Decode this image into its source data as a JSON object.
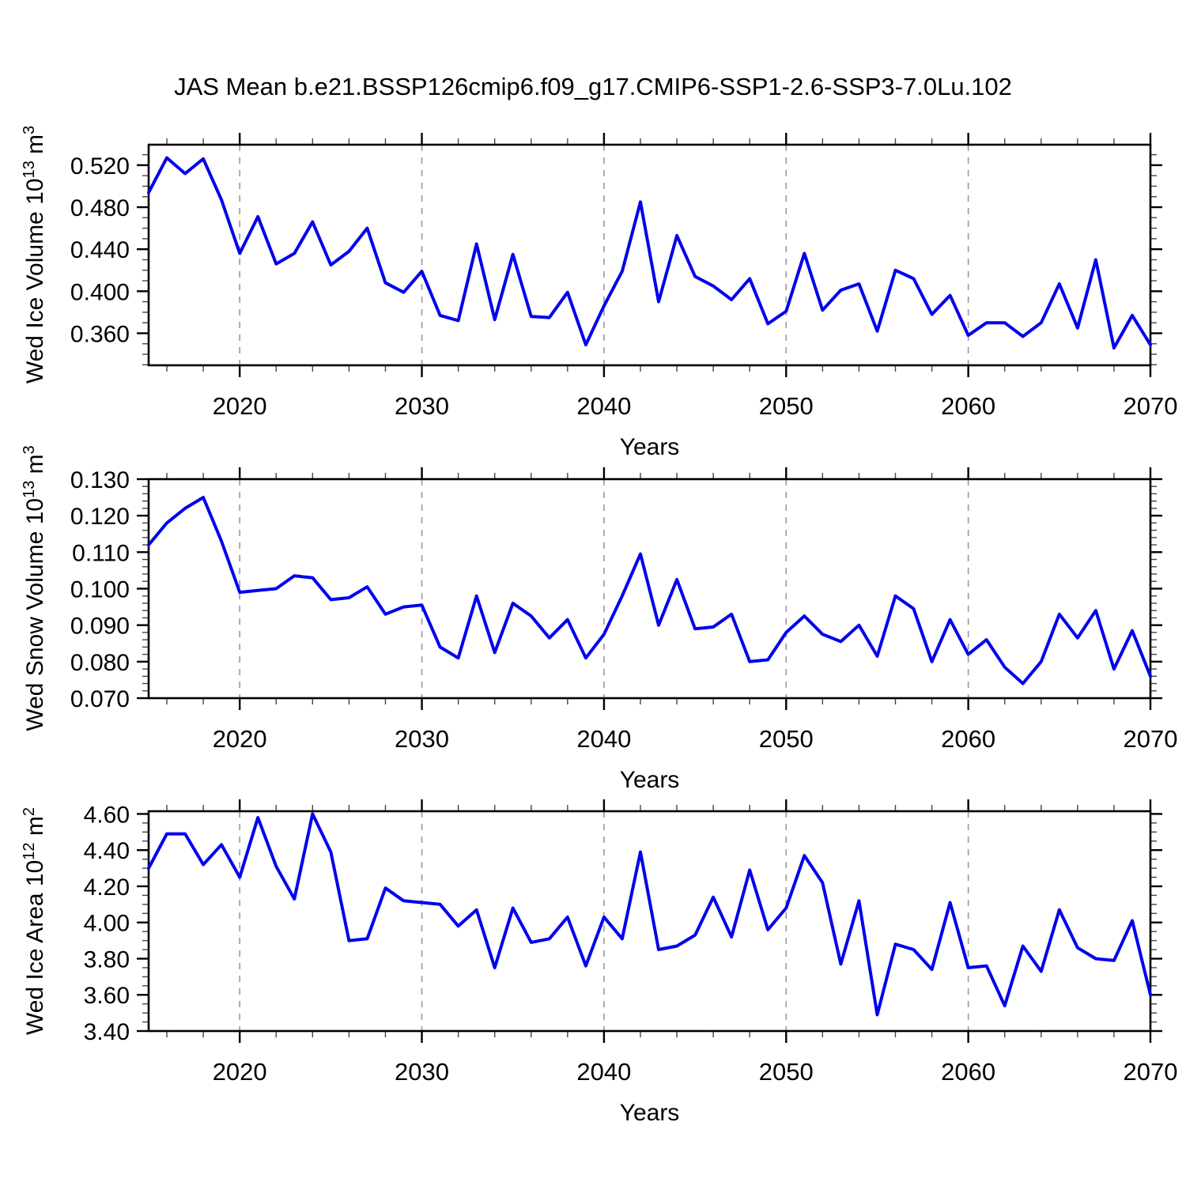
{
  "title": "JAS Mean b.e21.BSSP126cmip6.f09_g17.CMIP6-SSP1-2.6-SSP3-7.0Lu.102",
  "style": {
    "line_color": "#0000ee",
    "grid_color": "#999999",
    "frame_color": "#000000",
    "minor_tick_color": "#444444",
    "background": "#ffffff"
  },
  "x_axis": {
    "label": "Years",
    "range": [
      2015,
      2070
    ],
    "major_ticks": [
      2020,
      2030,
      2040,
      2050,
      2060,
      2070
    ],
    "tick_labels": [
      "2020",
      "2030",
      "2040",
      "2050",
      "2060",
      "2070"
    ],
    "minor_step": 2,
    "gridlines": [
      2020,
      2030,
      2040,
      2050,
      2060
    ]
  },
  "chart_data": [
    {
      "type": "line",
      "ylabel": "Wed Ice Volume 10^13 m^3",
      "ylabel_parts": {
        "base": "Wed Ice Volume 10",
        "exp": "13",
        "unit": " m",
        "unit_exp": "3"
      },
      "ylim": [
        0.3295,
        0.5395
      ],
      "ytick_values": [
        0.36,
        0.4,
        0.44,
        0.48,
        0.52
      ],
      "ytick_labels": [
        "0.360",
        "0.400",
        "0.440",
        "0.480",
        "0.520"
      ],
      "yminor_step": 0.01,
      "x": [
        2015,
        2016,
        2017,
        2018,
        2019,
        2020,
        2021,
        2022,
        2023,
        2024,
        2025,
        2026,
        2027,
        2028,
        2029,
        2030,
        2031,
        2032,
        2033,
        2034,
        2035,
        2036,
        2037,
        2038,
        2039,
        2040,
        2041,
        2042,
        2043,
        2044,
        2045,
        2046,
        2047,
        2048,
        2049,
        2050,
        2051,
        2052,
        2053,
        2054,
        2055,
        2056,
        2057,
        2058,
        2059,
        2060,
        2061,
        2062,
        2063,
        2064,
        2065,
        2066,
        2067,
        2068,
        2069,
        2070
      ],
      "values": [
        0.494,
        0.527,
        0.512,
        0.526,
        0.487,
        0.436,
        0.471,
        0.426,
        0.436,
        0.466,
        0.425,
        0.438,
        0.46,
        0.408,
        0.399,
        0.419,
        0.377,
        0.372,
        0.445,
        0.373,
        0.435,
        0.376,
        0.375,
        0.399,
        0.349,
        0.386,
        0.419,
        0.485,
        0.39,
        0.453,
        0.414,
        0.405,
        0.392,
        0.412,
        0.369,
        0.381,
        0.436,
        0.382,
        0.401,
        0.407,
        0.362,
        0.42,
        0.412,
        0.378,
        0.396,
        0.358,
        0.37,
        0.37,
        0.357,
        0.37,
        0.407,
        0.365,
        0.43,
        0.346,
        0.377,
        0.349
      ]
    },
    {
      "type": "line",
      "ylabel": "Wed Snow Volume 10^13 m^3",
      "ylabel_parts": {
        "base": "Wed Snow Volume 10",
        "exp": "13",
        "unit": " m",
        "unit_exp": "3"
      },
      "ylim": [
        0.07,
        0.13
      ],
      "ytick_values": [
        0.07,
        0.08,
        0.09,
        0.1,
        0.11,
        0.12,
        0.13
      ],
      "ytick_labels": [
        "0.070",
        "0.080",
        "0.090",
        "0.100",
        "0.110",
        "0.120",
        "0.130"
      ],
      "yminor_step": 0.002,
      "x": [
        2015,
        2016,
        2017,
        2018,
        2019,
        2020,
        2021,
        2022,
        2023,
        2024,
        2025,
        2026,
        2027,
        2028,
        2029,
        2030,
        2031,
        2032,
        2033,
        2034,
        2035,
        2036,
        2037,
        2038,
        2039,
        2040,
        2041,
        2042,
        2043,
        2044,
        2045,
        2046,
        2047,
        2048,
        2049,
        2050,
        2051,
        2052,
        2053,
        2054,
        2055,
        2056,
        2057,
        2058,
        2059,
        2060,
        2061,
        2062,
        2063,
        2064,
        2065,
        2066,
        2067,
        2068,
        2069,
        2070
      ],
      "values": [
        0.112,
        0.118,
        0.122,
        0.125,
        0.113,
        0.099,
        0.0995,
        0.1,
        0.1035,
        0.103,
        0.097,
        0.0975,
        0.1005,
        0.093,
        0.095,
        0.0955,
        0.084,
        0.081,
        0.098,
        0.0825,
        0.096,
        0.0925,
        0.0865,
        0.0915,
        0.081,
        0.0875,
        0.098,
        0.1095,
        0.09,
        0.1025,
        0.089,
        0.0895,
        0.093,
        0.08,
        0.0805,
        0.088,
        0.0925,
        0.0875,
        0.0855,
        0.09,
        0.0815,
        0.098,
        0.0945,
        0.08,
        0.0915,
        0.082,
        0.086,
        0.0785,
        0.074,
        0.08,
        0.093,
        0.0865,
        0.094,
        0.078,
        0.0885,
        0.076
      ]
    },
    {
      "type": "line",
      "ylabel": "Wed Ice Area 10^12 m^2",
      "ylabel_parts": {
        "base": "Wed Ice Area 10",
        "exp": "12",
        "unit": " m",
        "unit_exp": "2"
      },
      "ylim": [
        3.4,
        4.615
      ],
      "ytick_values": [
        3.4,
        3.6,
        3.8,
        4.0,
        4.2,
        4.4,
        4.6
      ],
      "ytick_labels": [
        "3.40",
        "3.60",
        "3.80",
        "4.00",
        "4.20",
        "4.40",
        "4.60"
      ],
      "yminor_step": 0.05,
      "x": [
        2015,
        2016,
        2017,
        2018,
        2019,
        2020,
        2021,
        2022,
        2023,
        2024,
        2025,
        2026,
        2027,
        2028,
        2029,
        2030,
        2031,
        2032,
        2033,
        2034,
        2035,
        2036,
        2037,
        2038,
        2039,
        2040,
        2041,
        2042,
        2043,
        2044,
        2045,
        2046,
        2047,
        2048,
        2049,
        2050,
        2051,
        2052,
        2053,
        2054,
        2055,
        2056,
        2057,
        2058,
        2059,
        2060,
        2061,
        2062,
        2063,
        2064,
        2065,
        2066,
        2067,
        2068,
        2069,
        2070
      ],
      "values": [
        4.3,
        4.49,
        4.49,
        4.32,
        4.43,
        4.25,
        4.58,
        4.31,
        4.13,
        4.6,
        4.39,
        3.9,
        3.91,
        4.19,
        4.12,
        4.11,
        4.1,
        3.98,
        4.07,
        3.75,
        4.08,
        3.89,
        3.91,
        4.03,
        3.76,
        4.03,
        3.91,
        4.39,
        3.85,
        3.87,
        3.93,
        4.14,
        3.92,
        4.29,
        3.96,
        4.08,
        4.37,
        4.22,
        3.77,
        4.12,
        3.49,
        3.88,
        3.85,
        3.74,
        4.11,
        3.75,
        3.76,
        3.54,
        3.87,
        3.73,
        4.07,
        3.86,
        3.8,
        3.79,
        4.01,
        3.6
      ]
    }
  ]
}
